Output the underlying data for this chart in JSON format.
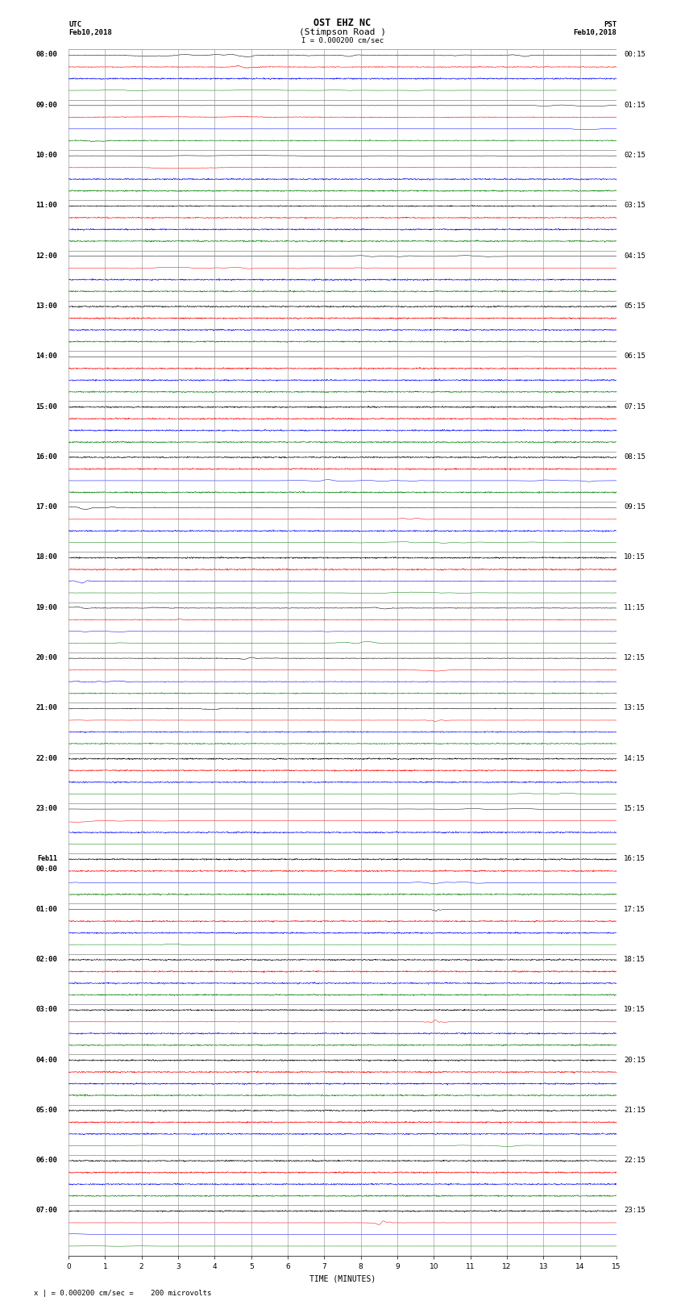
{
  "title_line1": "OST EHZ NC",
  "title_line2": "(Stimpson Road )",
  "scale_text": "I = 0.000200 cm/sec",
  "footer_text": "x | = 0.000200 cm/sec =    200 microvolts",
  "utc_label": "UTC",
  "utc_date": "Feb10,2018",
  "pst_label": "PST",
  "pst_date": "Feb10,2018",
  "xlabel": "TIME (MINUTES)",
  "xlim": [
    0,
    15
  ],
  "xticks": [
    0,
    1,
    2,
    3,
    4,
    5,
    6,
    7,
    8,
    9,
    10,
    11,
    12,
    13,
    14,
    15
  ],
  "background_color": "#ffffff",
  "grid_color": "#888888",
  "left_labels": [
    "08:00",
    "09:00",
    "10:00",
    "11:00",
    "12:00",
    "13:00",
    "14:00",
    "15:00",
    "16:00",
    "17:00",
    "18:00",
    "19:00",
    "20:00",
    "21:00",
    "22:00",
    "23:00",
    "Feb11\n00:00",
    "01:00",
    "02:00",
    "03:00",
    "04:00",
    "05:00",
    "06:00",
    "07:00"
  ],
  "right_labels": [
    "00:15",
    "01:15",
    "02:15",
    "03:15",
    "04:15",
    "05:15",
    "06:15",
    "07:15",
    "08:15",
    "09:15",
    "10:15",
    "11:15",
    "12:15",
    "13:15",
    "14:15",
    "15:15",
    "16:15",
    "17:15",
    "18:15",
    "19:15",
    "20:15",
    "21:15",
    "22:15",
    "23:15"
  ],
  "n_rows": 24,
  "trace_colors": [
    "black",
    "red",
    "blue",
    "green"
  ],
  "n_traces_per_row": 4,
  "n_pts": 4000,
  "fig_width": 8.5,
  "fig_height": 16.13,
  "dpi": 100,
  "title_fontsize": 8.5,
  "label_fontsize": 7,
  "axis_fontsize": 6.5,
  "tick_fontsize": 6.5,
  "lw": 0.35
}
